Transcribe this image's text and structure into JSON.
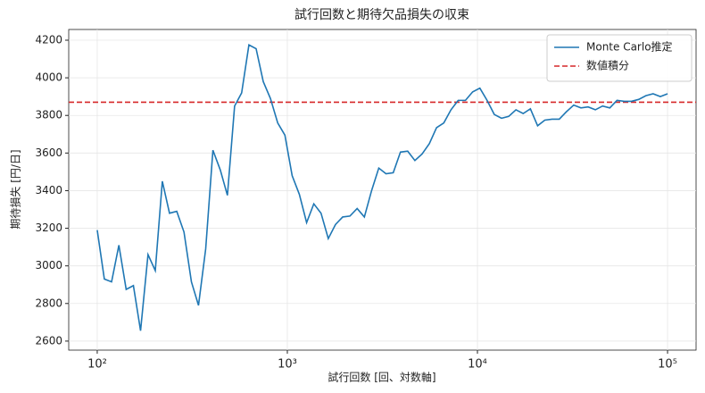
{
  "chart_data": {
    "type": "line",
    "title": "試行回数と期待欠品損失の収束",
    "xlabel": "試行回数 [回、対数軸]",
    "ylabel": "期待損失 [円/日]",
    "xscale": "log",
    "grid": true,
    "legend": "upper right",
    "x": [
      100,
      109,
      119,
      130,
      142,
      155,
      169,
      185,
      202,
      220,
      240,
      262,
      286,
      313,
      341,
      372,
      406,
      444,
      484,
      528,
      575,
      628,
      685,
      747,
      815,
      890,
      971,
      1060,
      1157,
      1263,
      1378,
      1504,
      1642,
      1792,
      1955,
      2134,
      2329,
      2542,
      2774,
      3027,
      3304,
      3606,
      3936,
      4296,
      4688,
      5117,
      5584,
      6094,
      6651,
      7259,
      7922,
      8646,
      9434,
      10297,
      11237,
      12264,
      13384,
      14607,
      15942,
      17398,
      18988,
      20723,
      22616,
      24683,
      26938,
      29400,
      32085,
      35017,
      38217,
      41709,
      45519,
      49679,
      54218,
      59172,
      64578,
      70479,
      76918,
      83946,
      91616,
      100000
    ],
    "series": [
      {
        "name": "Monte Carlo推定",
        "color": "#1f77b4",
        "values": [
          3190,
          2930,
          2915,
          3110,
          2875,
          2895,
          2655,
          3060,
          2975,
          3450,
          3280,
          3290,
          3180,
          2915,
          2790,
          3090,
          3615,
          3510,
          3375,
          3850,
          3920,
          4175,
          4155,
          3980,
          3890,
          3760,
          3695,
          3480,
          3380,
          3230,
          3330,
          3280,
          3145,
          3220,
          3260,
          3265,
          3305,
          3260,
          3400,
          3520,
          3490,
          3495,
          3605,
          3610,
          3560,
          3595,
          3650,
          3735,
          3760,
          3830,
          3880,
          3880,
          3925,
          3945,
          3880,
          3805,
          3785,
          3795,
          3830,
          3810,
          3835,
          3745,
          3775,
          3780,
          3780,
          3820,
          3855,
          3840,
          3845,
          3830,
          3850,
          3840,
          3880,
          3875,
          3875,
          3885,
          3905,
          3915,
          3900,
          3915
        ]
      }
    ],
    "hlines": [
      {
        "name": "数値積分",
        "value": 3870,
        "color": "#d62728",
        "dash": true
      }
    ],
    "xlim": [
      70.8,
      141254
    ],
    "xticks": [
      {
        "value": 100,
        "label": "10²"
      },
      {
        "value": 1000,
        "label": "10³"
      },
      {
        "value": 10000,
        "label": "10⁴"
      },
      {
        "value": 100000,
        "label": "10⁵"
      }
    ],
    "ylim": [
      2552,
      4257
    ],
    "yticks": [
      2600,
      2800,
      3000,
      3200,
      3400,
      3600,
      3800,
      4000,
      4200
    ]
  }
}
